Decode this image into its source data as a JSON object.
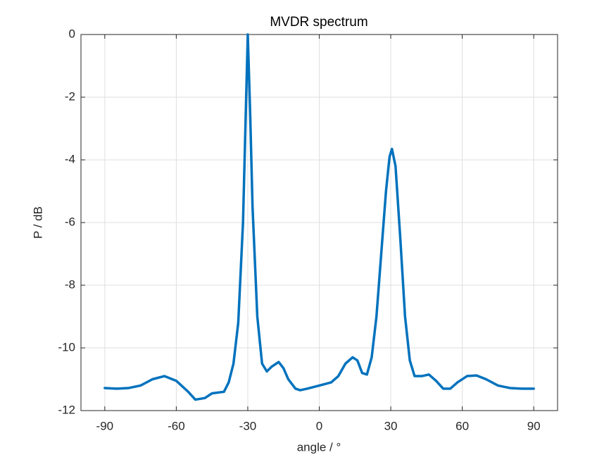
{
  "chart_data": {
    "type": "line",
    "title": "MVDR spectrum",
    "x_label": "angle / °",
    "y_label": "P / dB",
    "x": [
      -90,
      -85,
      -80,
      -75,
      -70,
      -65,
      -60,
      -55,
      -52,
      -48,
      -45,
      -40,
      -38,
      -36,
      -34,
      -32,
      -31,
      -30,
      -29,
      -28,
      -26,
      -24,
      -22,
      -20,
      -17,
      -15,
      -13,
      -10,
      -8,
      -5,
      0,
      5,
      8,
      11,
      14,
      16,
      18,
      20,
      22,
      24,
      26,
      28,
      29.5,
      30.5,
      32,
      34,
      36,
      38,
      40,
      43,
      46,
      49,
      52,
      55,
      58,
      62,
      66,
      70,
      75,
      80,
      85,
      90
    ],
    "series": [
      {
        "name": "P",
        "color": "#0072bd",
        "values": [
          -11.28,
          -11.3,
          -11.28,
          -11.2,
          -11.0,
          -10.9,
          -11.05,
          -11.4,
          -11.65,
          -11.6,
          -11.45,
          -11.4,
          -11.1,
          -10.5,
          -9.2,
          -6,
          -3,
          0,
          -2.5,
          -5.5,
          -9,
          -10.5,
          -10.75,
          -10.6,
          -10.45,
          -10.65,
          -11.0,
          -11.3,
          -11.35,
          -11.3,
          -11.2,
          -11.1,
          -10.9,
          -10.5,
          -10.3,
          -10.4,
          -10.8,
          -10.85,
          -10.3,
          -9.0,
          -7,
          -5,
          -3.9,
          -3.65,
          -4.2,
          -6.5,
          -9,
          -10.4,
          -10.9,
          -10.9,
          -10.85,
          -11.05,
          -11.3,
          -11.3,
          -11.1,
          -10.9,
          -10.88,
          -11.0,
          -11.2,
          -11.28,
          -11.3,
          -11.3
        ]
      }
    ],
    "xlim": [
      -100,
      100
    ],
    "ylim": [
      -12,
      0
    ],
    "xticks": [
      -90,
      -60,
      -30,
      0,
      30,
      60,
      90
    ],
    "yticks": [
      -12,
      -10,
      -8,
      -6,
      -4,
      -2,
      0
    ],
    "grid": true
  }
}
